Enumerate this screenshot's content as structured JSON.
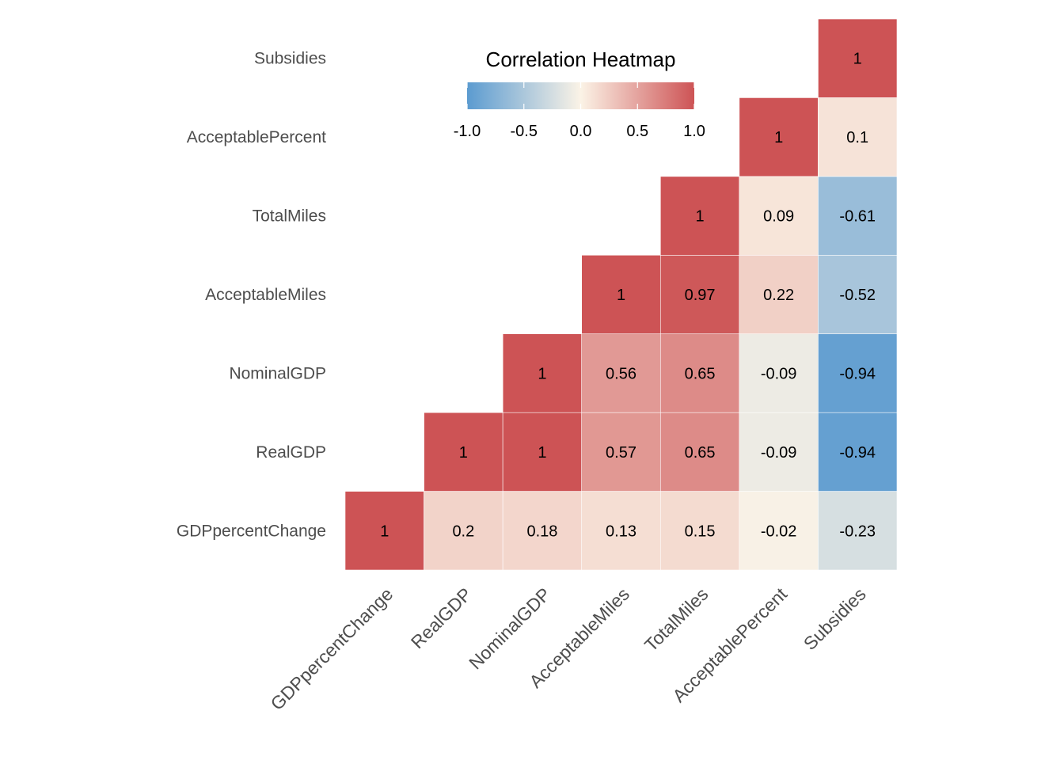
{
  "chart_data": {
    "type": "heatmap",
    "title": "",
    "xlabel": "",
    "ylabel": "",
    "variables": [
      "GDPpercentChange",
      "RealGDP",
      "NominalGDP",
      "AcceptableMiles",
      "TotalMiles",
      "AcceptablePercent",
      "Subsidies"
    ],
    "cells": [
      {
        "x": "GDPpercentChange",
        "y": "GDPpercentChange",
        "value": 1,
        "label": "1"
      },
      {
        "x": "RealGDP",
        "y": "GDPpercentChange",
        "value": 0.2,
        "label": "0.2"
      },
      {
        "x": "NominalGDP",
        "y": "GDPpercentChange",
        "value": 0.18,
        "label": "0.18"
      },
      {
        "x": "AcceptableMiles",
        "y": "GDPpercentChange",
        "value": 0.13,
        "label": "0.13"
      },
      {
        "x": "TotalMiles",
        "y": "GDPpercentChange",
        "value": 0.15,
        "label": "0.15"
      },
      {
        "x": "AcceptablePercent",
        "y": "GDPpercentChange",
        "value": -0.02,
        "label": "-0.02"
      },
      {
        "x": "Subsidies",
        "y": "GDPpercentChange",
        "value": -0.23,
        "label": "-0.23"
      },
      {
        "x": "RealGDP",
        "y": "RealGDP",
        "value": 1,
        "label": "1"
      },
      {
        "x": "NominalGDP",
        "y": "RealGDP",
        "value": 1,
        "label": "1"
      },
      {
        "x": "AcceptableMiles",
        "y": "RealGDP",
        "value": 0.57,
        "label": "0.57"
      },
      {
        "x": "TotalMiles",
        "y": "RealGDP",
        "value": 0.65,
        "label": "0.65"
      },
      {
        "x": "AcceptablePercent",
        "y": "RealGDP",
        "value": -0.09,
        "label": "-0.09"
      },
      {
        "x": "Subsidies",
        "y": "RealGDP",
        "value": -0.94,
        "label": "-0.94"
      },
      {
        "x": "NominalGDP",
        "y": "NominalGDP",
        "value": 1,
        "label": "1"
      },
      {
        "x": "AcceptableMiles",
        "y": "NominalGDP",
        "value": 0.56,
        "label": "0.56"
      },
      {
        "x": "TotalMiles",
        "y": "NominalGDP",
        "value": 0.65,
        "label": "0.65"
      },
      {
        "x": "AcceptablePercent",
        "y": "NominalGDP",
        "value": -0.09,
        "label": "-0.09"
      },
      {
        "x": "Subsidies",
        "y": "NominalGDP",
        "value": -0.94,
        "label": "-0.94"
      },
      {
        "x": "AcceptableMiles",
        "y": "AcceptableMiles",
        "value": 1,
        "label": "1"
      },
      {
        "x": "TotalMiles",
        "y": "AcceptableMiles",
        "value": 0.97,
        "label": "0.97"
      },
      {
        "x": "AcceptablePercent",
        "y": "AcceptableMiles",
        "value": 0.22,
        "label": "0.22"
      },
      {
        "x": "Subsidies",
        "y": "AcceptableMiles",
        "value": -0.52,
        "label": "-0.52"
      },
      {
        "x": "TotalMiles",
        "y": "TotalMiles",
        "value": 1,
        "label": "1"
      },
      {
        "x": "AcceptablePercent",
        "y": "TotalMiles",
        "value": 0.09,
        "label": "0.09"
      },
      {
        "x": "Subsidies",
        "y": "TotalMiles",
        "value": -0.61,
        "label": "-0.61"
      },
      {
        "x": "AcceptablePercent",
        "y": "AcceptablePercent",
        "value": 1,
        "label": "1"
      },
      {
        "x": "Subsidies",
        "y": "AcceptablePercent",
        "value": 0.1,
        "label": "0.1"
      },
      {
        "x": "Subsidies",
        "y": "Subsidies",
        "value": 1,
        "label": "1"
      }
    ],
    "legend": {
      "title": "Correlation Heatmap",
      "range": [
        -1,
        1
      ],
      "ticks": [
        -1,
        -0.5,
        0,
        0.5,
        1
      ],
      "tick_labels": [
        "-1.0",
        "-0.5",
        "0.0",
        "0.5",
        "1.0"
      ],
      "placement": "top-center",
      "orientation": "horizontal"
    },
    "color_scale": {
      "low": "#5b9bd0",
      "mid": "#fbf3e6",
      "high": "#cd5355"
    },
    "grid": false,
    "x_tick_rotation": "45 degrees"
  }
}
